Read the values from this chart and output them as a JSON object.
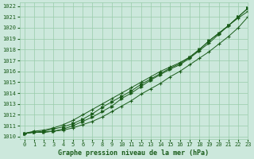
{
  "title": "Graphe pression niveau de la mer (hPa)",
  "xlim": [
    -0.5,
    23
  ],
  "ylim": [
    1009.8,
    1022.3
  ],
  "xticks": [
    0,
    1,
    2,
    3,
    4,
    5,
    6,
    7,
    8,
    9,
    10,
    11,
    12,
    13,
    14,
    15,
    16,
    17,
    18,
    19,
    20,
    21,
    22,
    23
  ],
  "yticks": [
    1010,
    1011,
    1012,
    1013,
    1014,
    1015,
    1016,
    1017,
    1018,
    1019,
    1020,
    1021,
    1022
  ],
  "bg_color": "#cce8dc",
  "grid_color": "#99ccaa",
  "line_color": "#1a5c1a",
  "series": [
    [
      1010.3,
      1010.4,
      1010.4,
      1010.5,
      1010.6,
      1010.8,
      1011.1,
      1011.4,
      1011.8,
      1012.3,
      1012.8,
      1013.3,
      1013.9,
      1014.4,
      1014.9,
      1015.5,
      1016.0,
      1016.6,
      1017.2,
      1017.8,
      1018.5,
      1019.2,
      1020.0,
      1021.0
    ],
    [
      1010.3,
      1010.4,
      1010.4,
      1010.5,
      1010.7,
      1011.0,
      1011.4,
      1011.8,
      1012.3,
      1012.8,
      1013.5,
      1014.0,
      1014.6,
      1015.2,
      1015.7,
      1016.2,
      1016.6,
      1017.2,
      1017.9,
      1018.6,
      1019.4,
      1020.2,
      1021.0,
      1021.8
    ],
    [
      1010.3,
      1010.5,
      1010.6,
      1010.8,
      1011.1,
      1011.5,
      1012.0,
      1012.5,
      1013.0,
      1013.5,
      1014.0,
      1014.5,
      1015.0,
      1015.5,
      1016.0,
      1016.4,
      1016.8,
      1017.3,
      1018.0,
      1018.8,
      1019.5,
      1020.2,
      1020.9,
      1021.5
    ],
    [
      1010.3,
      1010.4,
      1010.5,
      1010.7,
      1010.9,
      1011.2,
      1011.6,
      1012.1,
      1012.7,
      1013.2,
      1013.7,
      1014.2,
      1014.8,
      1015.3,
      1015.8,
      1016.3,
      1016.7,
      1017.3,
      1018.0,
      1018.8,
      1019.5,
      1020.2,
      1021.0,
      1021.8
    ]
  ]
}
